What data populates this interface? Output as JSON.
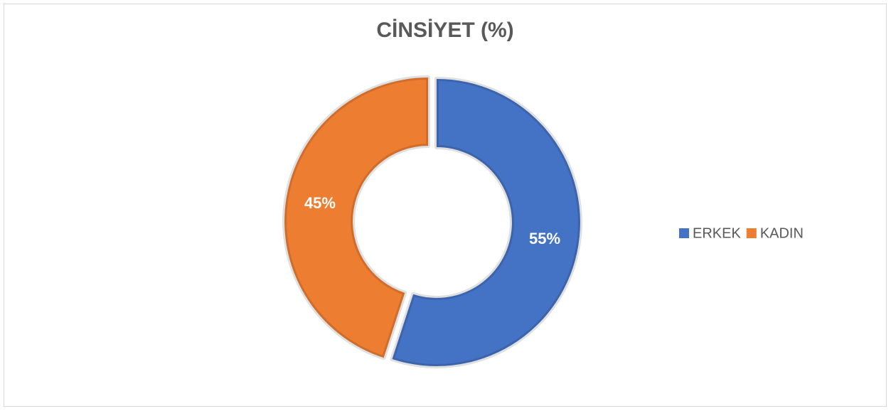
{
  "chart_data": {
    "type": "donut",
    "title": "CİNSİYET (%)",
    "categories": [
      "ERKEK",
      "KADIN"
    ],
    "values": [
      55,
      45
    ],
    "value_labels": [
      "55%",
      "45%"
    ],
    "colors": [
      "#4472c4",
      "#ed7d31"
    ],
    "legend": "right"
  }
}
